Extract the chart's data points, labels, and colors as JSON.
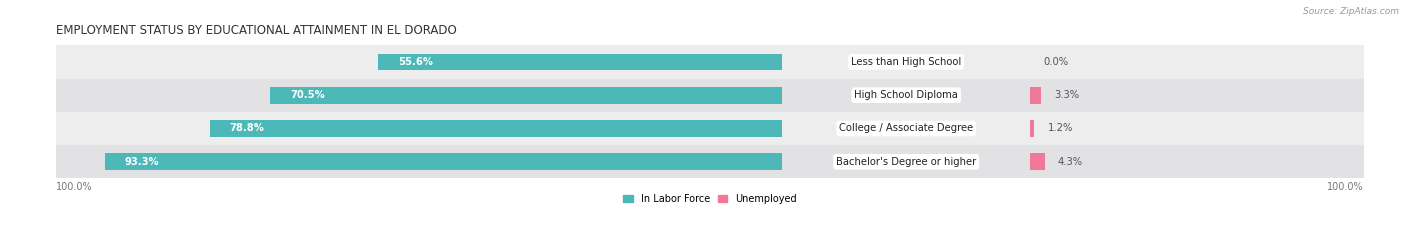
{
  "title": "EMPLOYMENT STATUS BY EDUCATIONAL ATTAINMENT IN EL DORADO",
  "source": "Source: ZipAtlas.com",
  "categories": [
    "Less than High School",
    "High School Diploma",
    "College / Associate Degree",
    "Bachelor's Degree or higher"
  ],
  "in_labor_force": [
    55.6,
    70.5,
    78.8,
    93.3
  ],
  "unemployed": [
    0.0,
    3.3,
    1.2,
    4.3
  ],
  "labor_force_color": "#4DB8B8",
  "unemployed_color": "#F07898",
  "row_bg_colors": [
    "#EDEDEE",
    "#E2E2E4"
  ],
  "title_fontsize": 8.5,
  "label_fontsize": 7.2,
  "tick_fontsize": 7.0,
  "source_fontsize": 6.5,
  "axis_label": "100.0%"
}
